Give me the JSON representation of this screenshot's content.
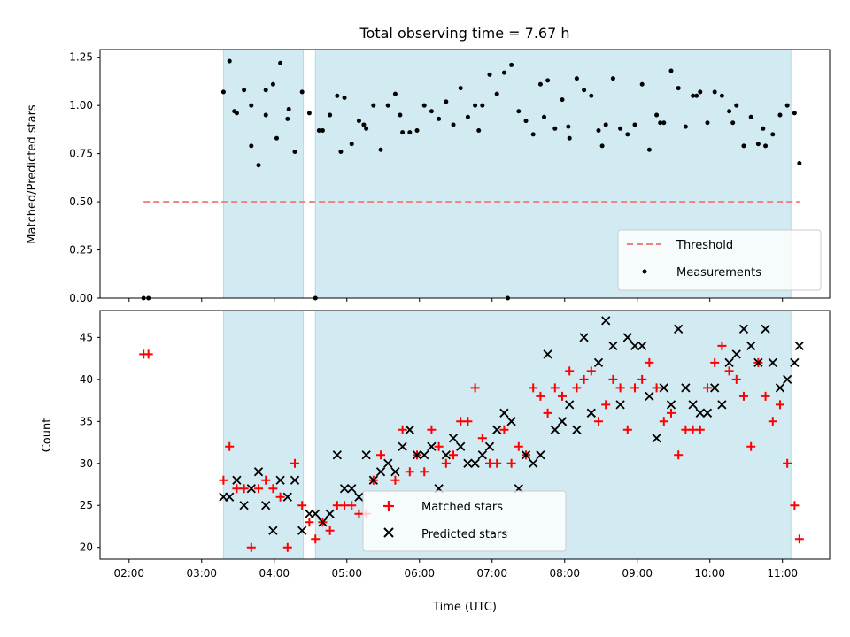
{
  "chart_data": [
    {
      "type": "scatter",
      "title": "Total observing time = 7.67 h",
      "xlabel": "",
      "ylabel": "Matched/Predicted stars",
      "ylim": [
        0,
        1.29
      ],
      "yticks": [
        "0.00",
        "0.25",
        "0.50",
        "0.75",
        "1.00",
        "1.25"
      ],
      "grid": false,
      "legend_position": "lower-right",
      "shaded_intervals": [
        [
          "03:18",
          "04:24"
        ],
        [
          "04:34",
          "11:07"
        ]
      ],
      "series": [
        {
          "name": "Threshold",
          "kind": "dashed-line",
          "color": "#f08080",
          "x": [
            "02:12",
            "11:14"
          ],
          "y": [
            0.5,
            0.5
          ]
        },
        {
          "name": "Measurements",
          "kind": "dot",
          "color": "#000000",
          "x": [
            "02:12",
            "02:16",
            "03:18",
            "03:23",
            "03:29",
            "03:35",
            "03:41",
            "03:47",
            "03:53",
            "03:59",
            "04:05",
            "04:11",
            "04:17",
            "04:23",
            "04:29",
            "04:34",
            "04:40",
            "04:46",
            "04:52",
            "04:58",
            "05:04",
            "05:10",
            "05:16",
            "05:22",
            "05:28",
            "05:34",
            "05:40",
            "05:46",
            "05:52",
            "05:58",
            "06:04",
            "06:10",
            "06:16",
            "06:22",
            "06:28",
            "06:34",
            "06:40",
            "06:46",
            "06:52",
            "06:58",
            "07:04",
            "07:10",
            "07:16",
            "07:22",
            "07:28",
            "07:34",
            "07:40",
            "07:46",
            "07:52",
            "07:58",
            "08:04",
            "08:10",
            "08:16",
            "08:22",
            "08:28",
            "08:34",
            "08:40",
            "08:46",
            "08:52",
            "08:58",
            "09:04",
            "09:10",
            "09:16",
            "09:22",
            "09:28",
            "09:34",
            "09:40",
            "09:46",
            "09:52",
            "09:58",
            "10:04",
            "10:10",
            "10:16",
            "10:22",
            "10:28",
            "10:34",
            "10:40",
            "10:46",
            "10:52",
            "10:58",
            "11:04",
            "11:10",
            "11:14",
            "03:27",
            "03:41",
            "03:53",
            "04:02",
            "04:12",
            "04:37",
            "04:55",
            "05:14",
            "05:44",
            "06:49",
            "07:13",
            "07:43",
            "08:03",
            "08:31",
            "09:19",
            "09:49",
            "10:19",
            "10:44"
          ],
          "y": [
            0.0,
            0.0,
            1.07,
            1.23,
            0.96,
            1.08,
            1.0,
            0.69,
            1.08,
            1.11,
            1.22,
            0.93,
            0.76,
            1.07,
            0.96,
            0.0,
            0.87,
            0.95,
            1.05,
            1.04,
            0.8,
            0.92,
            0.88,
            1.0,
            0.77,
            1.0,
            1.06,
            0.86,
            0.86,
            0.87,
            1.0,
            0.97,
            0.93,
            1.02,
            0.9,
            1.09,
            0.94,
            1.0,
            1.0,
            1.16,
            1.06,
            1.17,
            1.21,
            0.97,
            0.92,
            0.85,
            1.11,
            1.13,
            0.88,
            1.03,
            0.83,
            1.14,
            1.08,
            1.05,
            0.87,
            0.9,
            1.14,
            0.88,
            0.85,
            0.9,
            1.11,
            0.77,
            0.95,
            0.91,
            1.18,
            1.09,
            0.89,
            1.05,
            1.07,
            0.91,
            1.07,
            1.05,
            0.97,
            1.0,
            0.79,
            0.94,
            0.8,
            0.79,
            0.85,
            0.95,
            1.0,
            0.96,
            0.7,
            0.97,
            0.79,
            0.95,
            0.83,
            0.98,
            0.87,
            0.76,
            0.9,
            0.95,
            0.87,
            0.0,
            0.94,
            0.89,
            0.79,
            0.91,
            1.05,
            0.91,
            0.88
          ]
        }
      ]
    },
    {
      "type": "scatter",
      "title": "",
      "xlabel": "Time (UTC)",
      "ylabel": "Count",
      "ylim": [
        18.6,
        48.2
      ],
      "yticks": [
        "20",
        "25",
        "30",
        "35",
        "40",
        "45"
      ],
      "xticks": [
        "02:00",
        "03:00",
        "04:00",
        "05:00",
        "06:00",
        "07:00",
        "08:00",
        "09:00",
        "10:00",
        "11:00"
      ],
      "grid": false,
      "legend_position": "lower-center",
      "shaded_intervals": [
        [
          "03:18",
          "04:24"
        ],
        [
          "04:34",
          "11:07"
        ]
      ],
      "series": [
        {
          "name": "Matched stars",
          "kind": "plus",
          "color": "#ff0000",
          "x": [
            "02:12",
            "02:16",
            "03:18",
            "03:23",
            "03:29",
            "03:35",
            "03:41",
            "03:47",
            "03:53",
            "03:59",
            "04:05",
            "04:11",
            "04:17",
            "04:23",
            "04:29",
            "04:34",
            "04:40",
            "04:46",
            "04:52",
            "04:58",
            "05:04",
            "05:10",
            "05:16",
            "05:22",
            "05:28",
            "05:34",
            "05:40",
            "05:46",
            "05:52",
            "05:58",
            "06:04",
            "06:10",
            "06:16",
            "06:22",
            "06:28",
            "06:34",
            "06:40",
            "06:46",
            "06:52",
            "06:58",
            "07:04",
            "07:10",
            "07:16",
            "07:22",
            "07:28",
            "07:34",
            "07:40",
            "07:46",
            "07:52",
            "07:58",
            "08:04",
            "08:10",
            "08:16",
            "08:22",
            "08:28",
            "08:34",
            "08:40",
            "08:46",
            "08:52",
            "08:58",
            "09:04",
            "09:10",
            "09:16",
            "09:22",
            "09:28",
            "09:34",
            "09:40",
            "09:46",
            "09:52",
            "09:58",
            "10:04",
            "10:10",
            "10:16",
            "10:22",
            "10:28",
            "10:34",
            "10:40",
            "10:46",
            "10:52",
            "10:58",
            "11:04",
            "11:10",
            "11:14"
          ],
          "y": [
            43,
            43,
            28,
            32,
            27,
            27,
            20,
            27,
            28,
            27,
            26,
            20,
            30,
            25,
            23,
            21,
            23,
            22,
            25,
            25,
            25,
            24,
            24,
            28,
            31,
            25,
            28,
            34,
            29,
            31,
            29,
            34,
            32,
            30,
            31,
            35,
            35,
            39,
            33,
            30,
            30,
            34,
            30,
            32,
            31,
            39,
            38,
            36,
            39,
            38,
            41,
            39,
            40,
            41,
            35,
            37,
            40,
            39,
            34,
            39,
            40,
            42,
            39,
            35,
            36,
            31,
            34,
            34,
            34,
            39,
            42,
            44,
            41,
            40,
            38,
            32,
            42,
            38,
            35,
            37,
            30,
            25,
            21
          ]
        },
        {
          "name": "Predicted stars",
          "kind": "x",
          "color": "#000000",
          "x": [
            "03:18",
            "03:23",
            "03:29",
            "03:35",
            "03:41",
            "03:47",
            "03:53",
            "03:59",
            "04:05",
            "04:11",
            "04:17",
            "04:23",
            "04:29",
            "04:34",
            "04:40",
            "04:46",
            "04:52",
            "04:58",
            "05:04",
            "05:10",
            "05:16",
            "05:22",
            "05:28",
            "05:34",
            "05:40",
            "05:46",
            "05:52",
            "05:58",
            "06:04",
            "06:10",
            "06:16",
            "06:22",
            "06:28",
            "06:34",
            "06:40",
            "06:46",
            "06:52",
            "06:58",
            "07:04",
            "07:10",
            "07:16",
            "07:22",
            "07:28",
            "07:34",
            "07:40",
            "07:46",
            "07:52",
            "07:58",
            "08:04",
            "08:10",
            "08:16",
            "08:22",
            "08:28",
            "08:34",
            "08:40",
            "08:46",
            "08:52",
            "08:58",
            "09:04",
            "09:10",
            "09:16",
            "09:22",
            "09:28",
            "09:34",
            "09:40",
            "09:46",
            "09:52",
            "09:58",
            "10:04",
            "10:10",
            "10:16",
            "10:22",
            "10:28",
            "10:34",
            "10:40",
            "10:46",
            "10:52",
            "10:58",
            "11:04",
            "11:10",
            "11:14"
          ],
          "y": [
            26,
            26,
            28,
            25,
            27,
            29,
            25,
            22,
            28,
            26,
            28,
            22,
            24,
            24,
            23,
            24,
            31,
            27,
            27,
            26,
            31,
            28,
            29,
            30,
            29,
            32,
            34,
            31,
            31,
            32,
            27,
            31,
            33,
            32,
            30,
            30,
            31,
            32,
            34,
            36,
            35,
            27,
            31,
            30,
            31,
            43,
            34,
            35,
            37,
            34,
            45,
            36,
            42,
            47,
            44,
            37,
            45,
            44,
            44,
            38,
            33,
            39,
            37,
            46,
            39,
            37,
            36,
            36,
            39,
            37,
            42,
            43,
            46,
            44,
            42,
            46,
            42,
            39,
            40,
            42,
            44
          ]
        }
      ]
    }
  ]
}
